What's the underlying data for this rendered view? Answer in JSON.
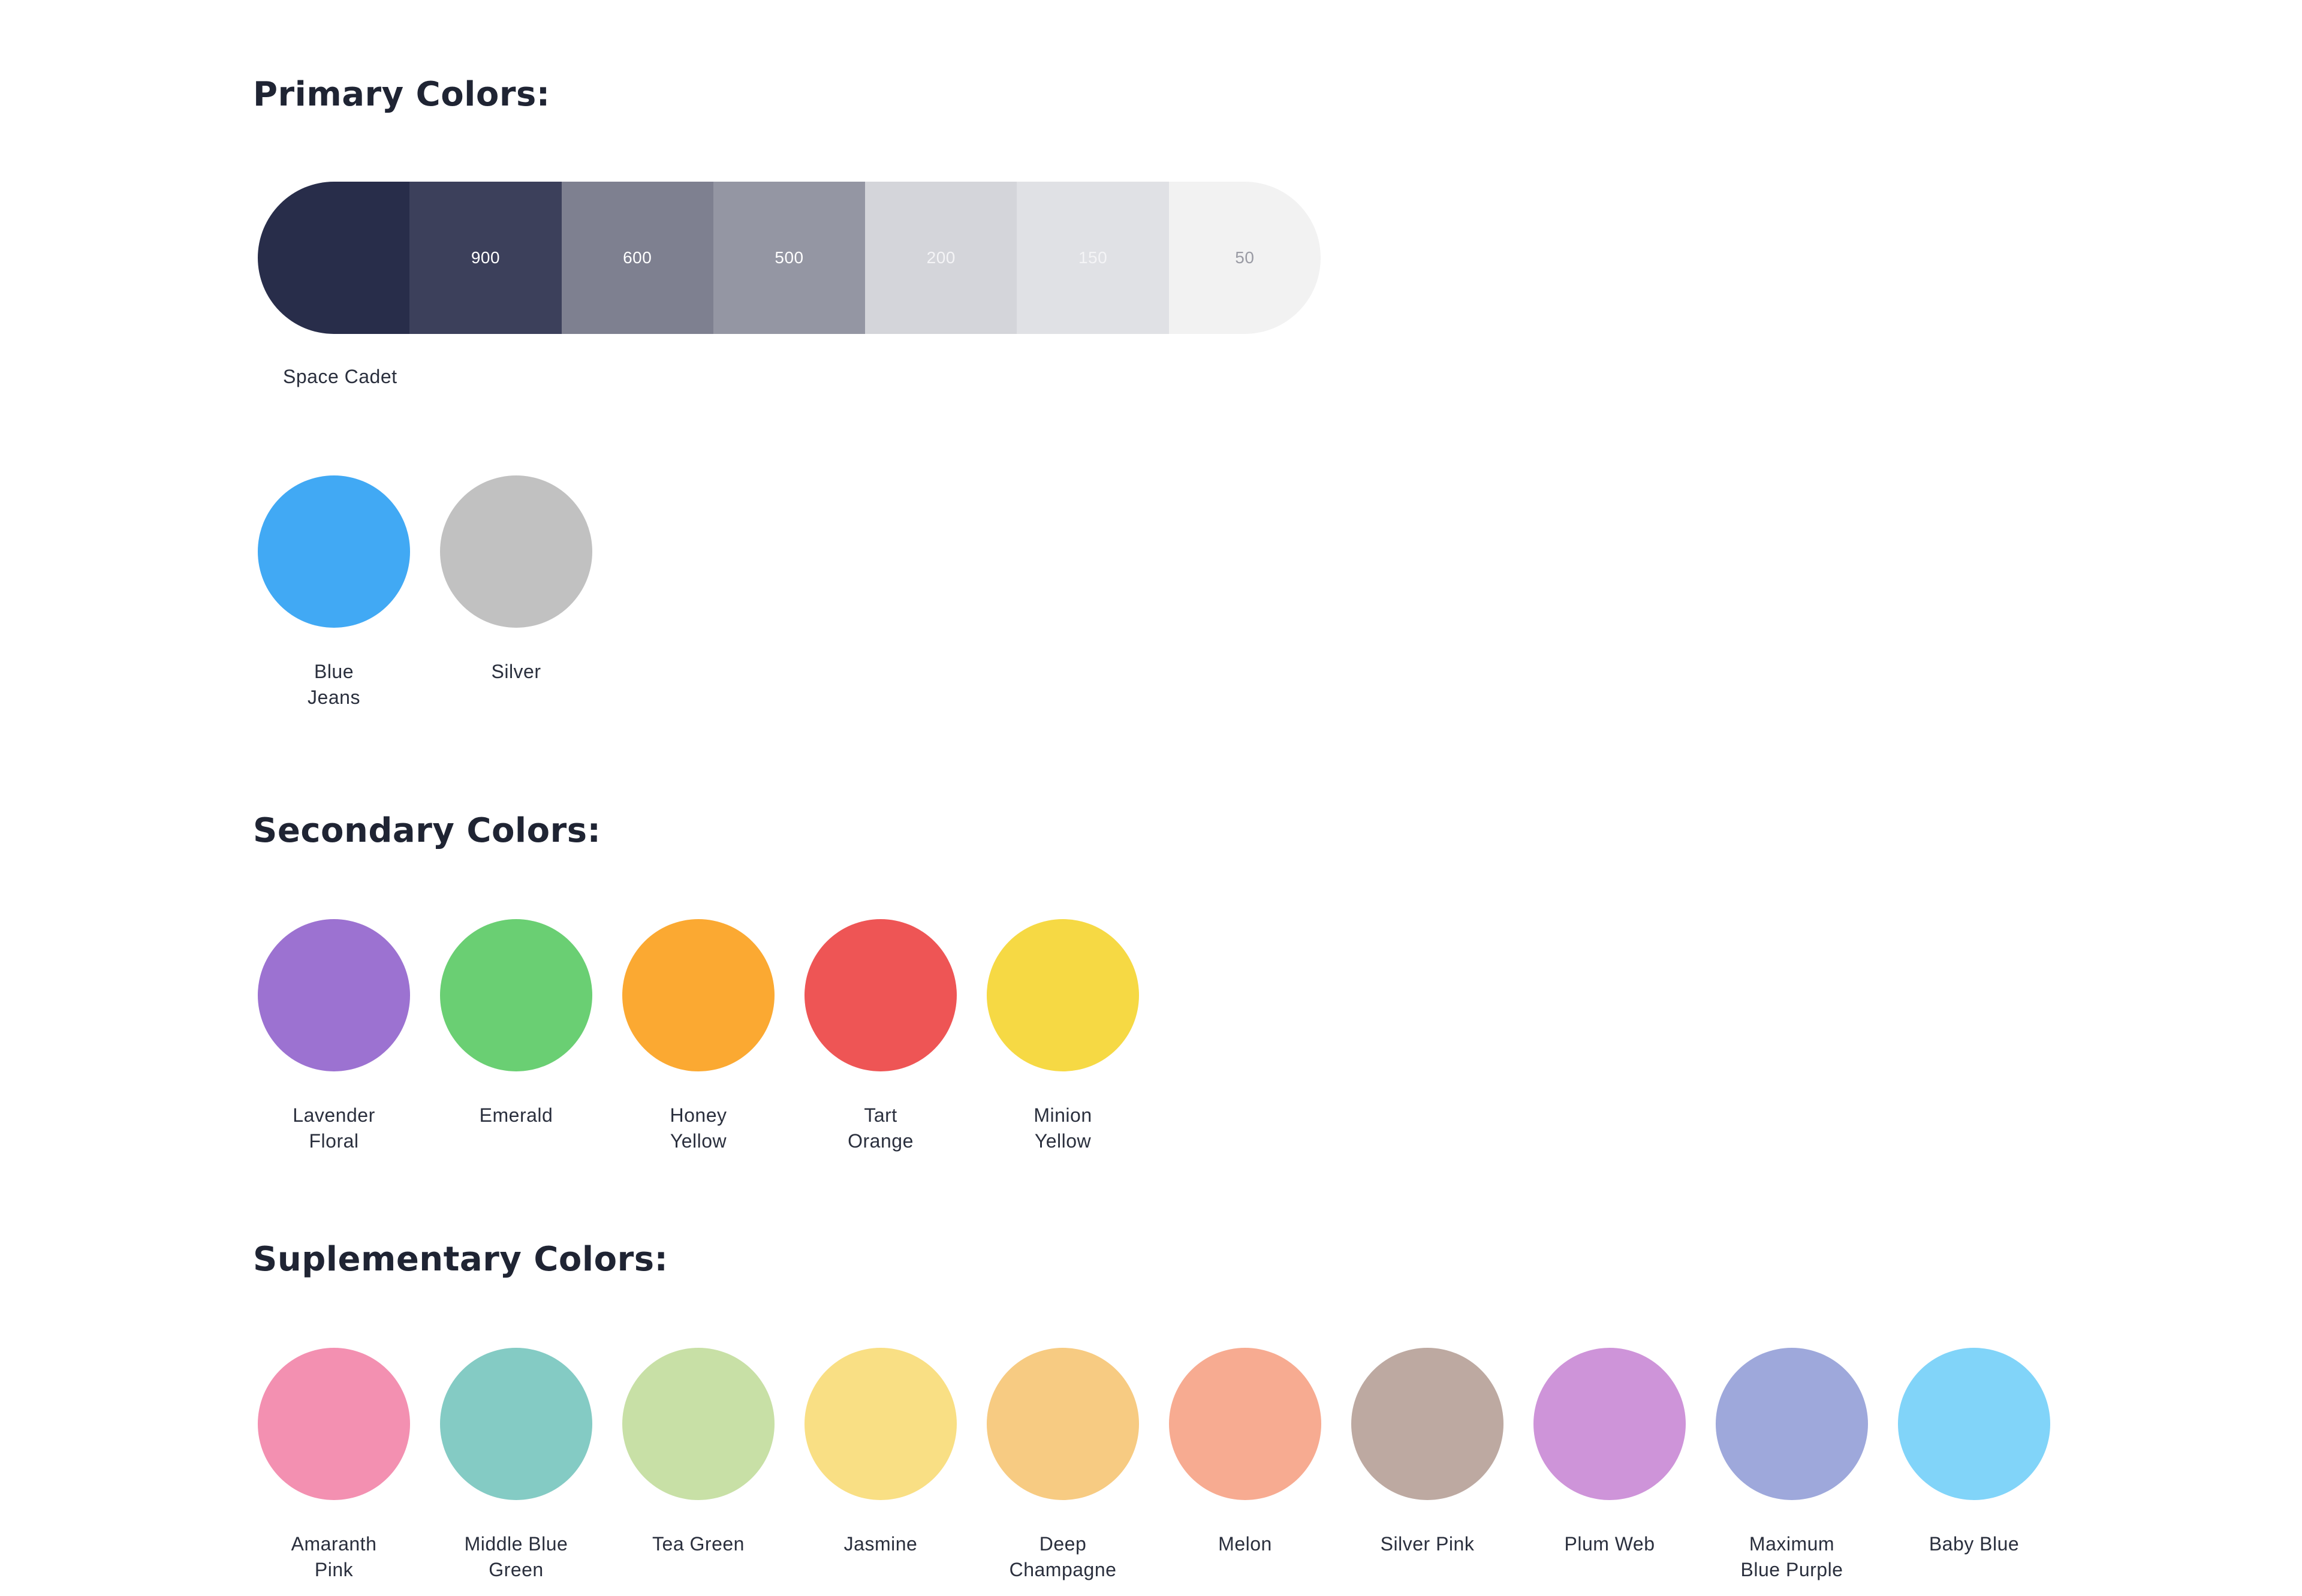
{
  "primary": {
    "title": "Primary Colors:",
    "scale_name": "Space Cadet",
    "scale": [
      {
        "label": "",
        "color": "#282d4a",
        "text_color": "#ffffff"
      },
      {
        "label": "900",
        "color": "#3c405b",
        "text_color": "#ffffff"
      },
      {
        "label": "600",
        "color": "#7e8090",
        "text_color": "#ffffff"
      },
      {
        "label": "500",
        "color": "#9496a3",
        "text_color": "#ffffff"
      },
      {
        "label": "200",
        "color": "#d4d5da",
        "text_color": "#f4f4f6"
      },
      {
        "label": "150",
        "color": "#e0e1e5",
        "text_color": "#f4f4f6"
      },
      {
        "label": "50",
        "color": "#f2f2f2",
        "text_color": "#9a9ba4"
      }
    ],
    "swatches": [
      {
        "label": "Blue\nJeans",
        "color": "#41a9f4"
      },
      {
        "label": "Silver",
        "color": "#c1c1c1"
      }
    ]
  },
  "secondary": {
    "title": "Secondary Colors:",
    "swatches": [
      {
        "label": "Lavender\nFloral",
        "color": "#9c72d1"
      },
      {
        "label": "Emerald",
        "color": "#6acf73"
      },
      {
        "label": "Honey\nYellow",
        "color": "#fba932"
      },
      {
        "label": "Tart\nOrange",
        "color": "#ee5555"
      },
      {
        "label": "Minion\nYellow",
        "color": "#f6d944"
      }
    ]
  },
  "supplementary": {
    "title": "Suplementary Colors:",
    "swatches": [
      {
        "label": "Amaranth\nPink",
        "color": "#f390b1"
      },
      {
        "label": "Middle Blue\nGreen",
        "color": "#84cbc4"
      },
      {
        "label": "Tea Green",
        "color": "#c8e0a6"
      },
      {
        "label": "Jasmine",
        "color": "#f9df84"
      },
      {
        "label": "Deep\nChampagne",
        "color": "#f7cb82"
      },
      {
        "label": "Melon",
        "color": "#f7ab91"
      },
      {
        "label": "Silver Pink",
        "color": "#bda9a1"
      },
      {
        "label": "Plum Web",
        "color": "#ce94d9"
      },
      {
        "label": "Maximum\nBlue Purple",
        "color": "#9ea8db"
      },
      {
        "label": "Baby Blue",
        "color": "#81d4f9"
      }
    ]
  }
}
